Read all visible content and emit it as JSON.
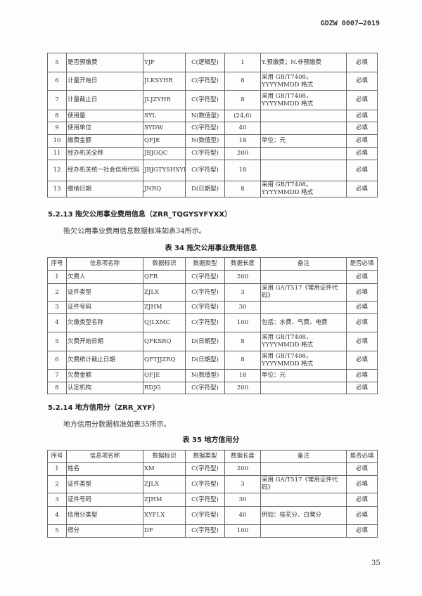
{
  "header": {
    "doc_code": "GDZW 0007—2019"
  },
  "table33_cont": {
    "rows": [
      [
        "5",
        "是否预缴费",
        "YJF",
        "C(逻辑型)",
        "1",
        "Y.预缴费；N.非预缴费",
        "必填"
      ],
      [
        "6",
        "计量开始日",
        "JLKSYHR",
        "C(字符型)",
        "8",
        "采用 GB/T7408，YYYYMMDD 格式",
        "必填"
      ],
      [
        "7",
        "计量截止日",
        "JLJZYHR",
        "C(字符型)",
        "8",
        "采用 GB/T7408，YYYYMMDD 格式",
        "必填"
      ],
      [
        "8",
        "使用量",
        "SYL",
        "N(数值型)",
        "(24,6)",
        "",
        "必填"
      ],
      [
        "9",
        "使用单位",
        "SYDW",
        "C(字符型)",
        "40",
        "",
        "必填"
      ],
      [
        "10",
        "缴费金额",
        "QFJE",
        "N(数值型)",
        "18",
        "单位：元",
        "必填"
      ],
      [
        "11",
        "经办机关全称",
        "JBJGQC",
        "C(字符型)",
        "200",
        "",
        "必填"
      ],
      [
        "12",
        "经办机关统一社会信用代码",
        "JBJGTYSHXYDM",
        "C(字符型)",
        "18",
        "",
        "必填"
      ],
      [
        "13",
        "缴纳日期",
        "JNRQ",
        "D(日期型)",
        "8",
        "采用 GB/T7408，YYYYMMDD 格式",
        "必填"
      ]
    ]
  },
  "section_5_2_13": {
    "heading": "5.2.13  拖欠公用事业费用信息（ZRR_TQGYSYFYXX）",
    "para": "拖欠公用事业费用信息数据标准如表34所示。",
    "caption": "表 34  拖欠公用事业费用信息"
  },
  "columns": [
    "序号",
    "信息项名称",
    "数据标识",
    "数据类型",
    "数据长度",
    "备注",
    "是否必填"
  ],
  "table34": {
    "rows": [
      [
        "1",
        "欠费人",
        "QFR",
        "C(字符型)",
        "200",
        "",
        "必填"
      ],
      [
        "2",
        "证件类型",
        "ZJLX",
        "C(字符型)",
        "3",
        "采用 GA/T517《常用证件代码》",
        "必填"
      ],
      [
        "3",
        "证件号码",
        "ZJHM",
        "C(字符型)",
        "30",
        "",
        "必填"
      ],
      [
        "4",
        "欠缴类型名称",
        "QJLXMC",
        "C(字符型)",
        "100",
        "包括：水费、气费、电费",
        "必填"
      ],
      [
        "5",
        "欠费开始日期",
        "QFKSRQ",
        "D(日期型)",
        "8",
        "采用 GB/T7408，YYYYMMDD 格式",
        "必填"
      ],
      [
        "6",
        "欠费统计截止日期",
        "QFTJJZRQ",
        "D(日期型)",
        "8",
        "采用 GB/T7408，YYYYMMDD 格式",
        "必填"
      ],
      [
        "7",
        "欠费金额",
        "QFJE",
        "N(数值型)",
        "18",
        "单位：元",
        "必填"
      ],
      [
        "8",
        "认定机构",
        "RDJG",
        "C(字符型)",
        "200",
        "",
        "必填"
      ]
    ]
  },
  "section_5_2_14": {
    "heading": "5.2.14  地方信用分（ZRR_XYF）",
    "para": "地方信用分数据标准如表35所示。",
    "caption": "表 35  地方信用分"
  },
  "table35": {
    "rows": [
      [
        "1",
        "姓名",
        "XM",
        "C(字符型)",
        "200",
        "",
        "必填"
      ],
      [
        "2",
        "证件类型",
        "ZJLX",
        "C(字符型)",
        "3",
        "采用 GA/T517《常用证件代码》",
        "必填"
      ],
      [
        "3",
        "证件号码",
        "ZJHM",
        "C(字符型)",
        "30",
        "",
        "必填"
      ],
      [
        "4",
        "信用分类型",
        "XYFLX",
        "C(字符型)",
        "40",
        "例如：桂花分、白鹭分",
        "必填"
      ],
      [
        "5",
        "得分",
        "DF",
        "C(字符型)",
        "100",
        "",
        "必填"
      ]
    ]
  },
  "footer": {
    "page_number": "35"
  }
}
